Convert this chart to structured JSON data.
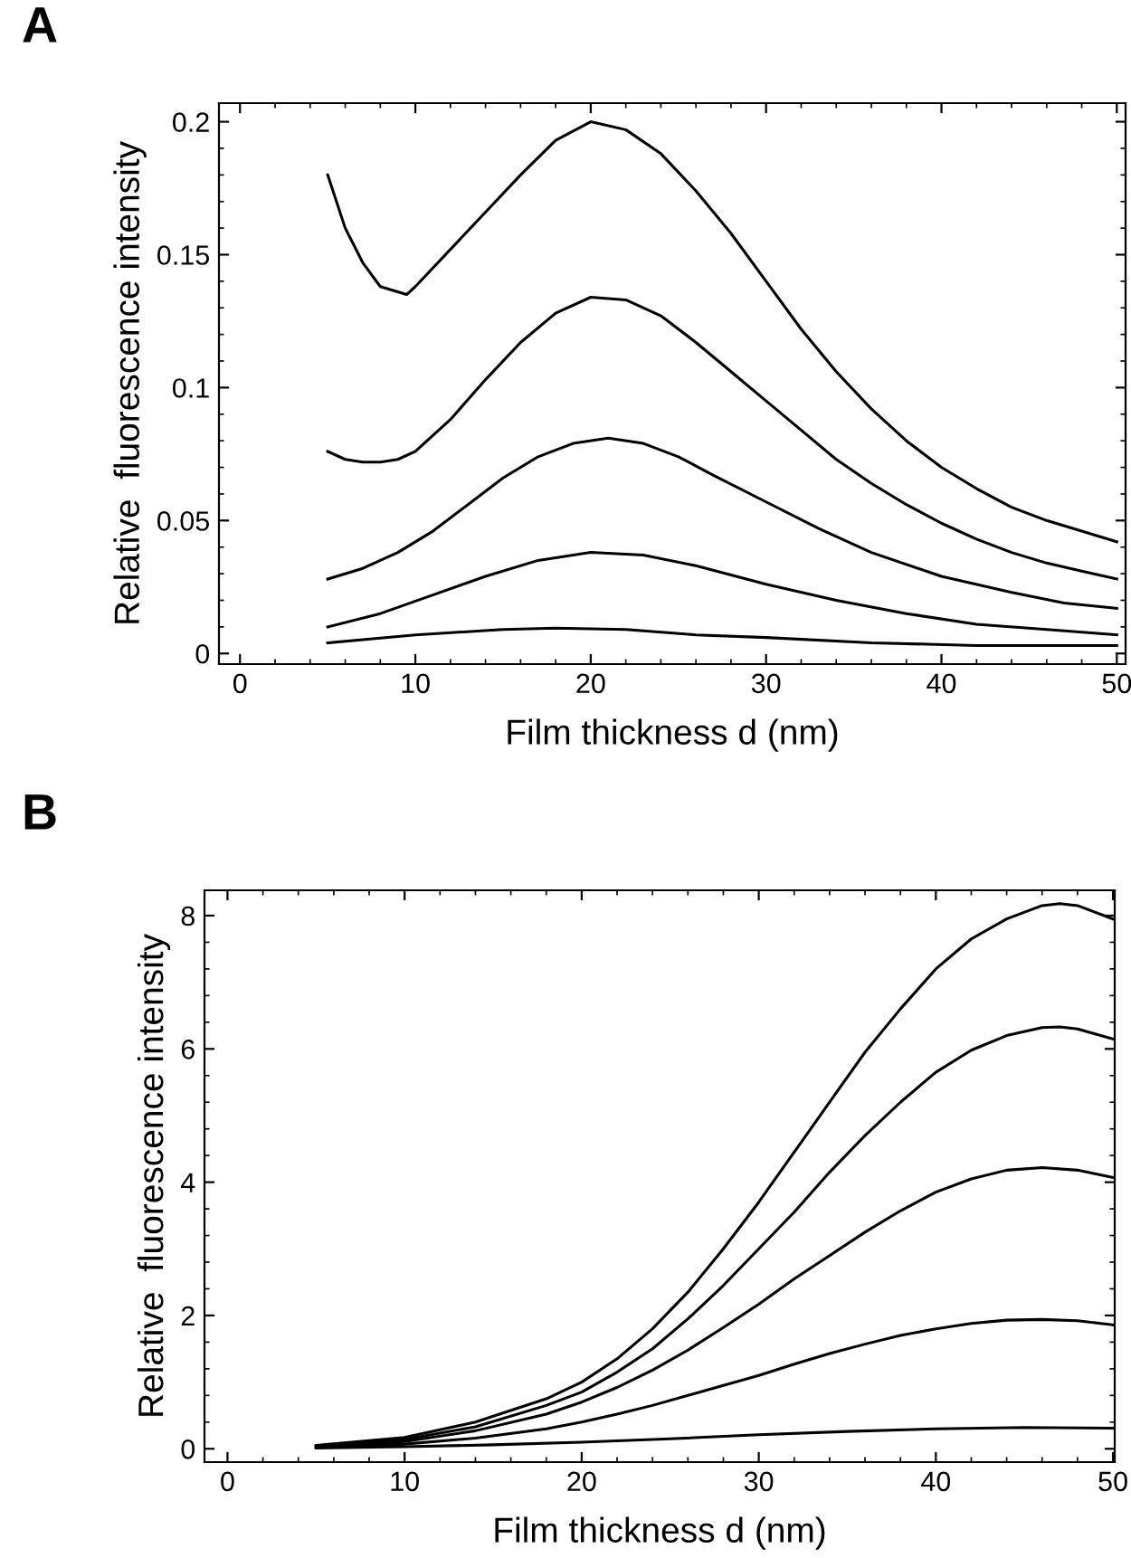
{
  "chart_data": [
    {
      "type": "line",
      "title": "A",
      "xlabel": "Film thickness d (nm)",
      "ylabel": "Relative  fluorescence intensity",
      "xlim": [
        -1.2,
        50.5
      ],
      "ylim": [
        -0.004,
        0.207
      ],
      "xticks": [
        0,
        10,
        20,
        30,
        40,
        50
      ],
      "yticks": [
        0,
        0.05,
        0.1,
        0.15,
        0.2
      ],
      "grid": false,
      "series": [
        {
          "color": "#000000",
          "x": [
            5,
            6,
            7,
            8,
            9.5,
            10,
            12,
            14,
            16,
            18,
            20,
            22,
            24,
            26,
            28,
            30,
            32,
            34,
            36,
            38,
            40,
            42,
            44,
            46,
            48,
            50
          ],
          "values": [
            0.18,
            0.16,
            0.147,
            0.138,
            0.135,
            0.138,
            0.152,
            0.166,
            0.18,
            0.193,
            0.2,
            0.197,
            0.188,
            0.174,
            0.158,
            0.14,
            0.122,
            0.106,
            0.092,
            0.08,
            0.07,
            0.062,
            0.055,
            0.05,
            0.046,
            0.042
          ]
        },
        {
          "color": "#000000",
          "x": [
            5,
            6,
            7,
            8,
            9,
            10,
            12,
            14,
            16,
            18,
            20,
            22,
            24,
            26,
            28,
            30,
            32,
            34,
            36,
            38,
            40,
            42,
            44,
            46,
            48,
            50
          ],
          "values": [
            0.076,
            0.073,
            0.072,
            0.072,
            0.073,
            0.076,
            0.088,
            0.103,
            0.117,
            0.128,
            0.134,
            0.133,
            0.127,
            0.117,
            0.106,
            0.095,
            0.084,
            0.073,
            0.064,
            0.056,
            0.049,
            0.043,
            0.038,
            0.034,
            0.031,
            0.028
          ]
        },
        {
          "color": "#000000",
          "x": [
            5,
            7,
            9,
            11,
            13,
            15,
            17,
            19,
            21,
            23,
            25,
            27,
            30,
            33,
            36,
            40,
            44,
            47,
            50
          ],
          "values": [
            0.028,
            0.032,
            0.038,
            0.046,
            0.056,
            0.066,
            0.074,
            0.079,
            0.081,
            0.079,
            0.074,
            0.067,
            0.057,
            0.047,
            0.038,
            0.029,
            0.023,
            0.019,
            0.017
          ]
        },
        {
          "color": "#000000",
          "x": [
            5,
            8,
            11,
            14,
            17,
            20,
            23,
            26,
            30,
            34,
            38,
            42,
            46,
            50
          ],
          "values": [
            0.01,
            0.015,
            0.022,
            0.029,
            0.035,
            0.038,
            0.037,
            0.033,
            0.026,
            0.02,
            0.015,
            0.011,
            0.009,
            0.007
          ]
        },
        {
          "color": "#000000",
          "x": [
            5,
            10,
            15,
            18,
            22,
            26,
            30,
            36,
            42,
            50
          ],
          "values": [
            0.004,
            0.007,
            0.009,
            0.0095,
            0.009,
            0.007,
            0.006,
            0.004,
            0.003,
            0.003
          ]
        }
      ]
    },
    {
      "type": "line",
      "title": "B",
      "xlabel": "Film thickness d (nm)",
      "ylabel": "Relative  fluorescence intensity",
      "xlim": [
        -1.3,
        50.1
      ],
      "ylim": [
        -0.2,
        8.38
      ],
      "xticks": [
        0,
        10,
        20,
        30,
        40,
        50
      ],
      "yticks": [
        0,
        2,
        4,
        6,
        8
      ],
      "grid": false,
      "series": [
        {
          "color": "#000000",
          "x": [
            5,
            10,
            14,
            18,
            20,
            22,
            24,
            26,
            28,
            30,
            32,
            34,
            36,
            38,
            40,
            42,
            44,
            46,
            47,
            48,
            50
          ],
          "values": [
            0.05,
            0.17,
            0.4,
            0.75,
            1.0,
            1.35,
            1.8,
            2.35,
            3.0,
            3.7,
            4.45,
            5.2,
            5.95,
            6.6,
            7.2,
            7.65,
            7.95,
            8.15,
            8.18,
            8.15,
            7.95
          ]
        },
        {
          "color": "#000000",
          "x": [
            5,
            10,
            14,
            18,
            20,
            22,
            24,
            26,
            28,
            30,
            32,
            34,
            36,
            38,
            40,
            42,
            44,
            46,
            47,
            48,
            50
          ],
          "values": [
            0.04,
            0.14,
            0.33,
            0.65,
            0.85,
            1.15,
            1.5,
            1.95,
            2.45,
            3.0,
            3.55,
            4.15,
            4.7,
            5.2,
            5.65,
            5.98,
            6.2,
            6.32,
            6.33,
            6.3,
            6.15
          ]
        },
        {
          "color": "#000000",
          "x": [
            5,
            10,
            14,
            18,
            20,
            22,
            24,
            26,
            28,
            30,
            32,
            34,
            36,
            38,
            40,
            42,
            44,
            46,
            48,
            50
          ],
          "values": [
            0.03,
            0.11,
            0.27,
            0.52,
            0.7,
            0.92,
            1.18,
            1.48,
            1.82,
            2.17,
            2.55,
            2.9,
            3.25,
            3.57,
            3.85,
            4.05,
            4.18,
            4.22,
            4.18,
            4.07
          ]
        },
        {
          "color": "#000000",
          "x": [
            5,
            10,
            14,
            18,
            20,
            22,
            24,
            26,
            28,
            30,
            32,
            34,
            36,
            38,
            40,
            42,
            44,
            46,
            48,
            50
          ],
          "values": [
            0.02,
            0.07,
            0.16,
            0.3,
            0.4,
            0.52,
            0.65,
            0.8,
            0.95,
            1.1,
            1.27,
            1.43,
            1.57,
            1.7,
            1.8,
            1.88,
            1.93,
            1.94,
            1.92,
            1.86
          ]
        },
        {
          "color": "#000000",
          "x": [
            5,
            10,
            15,
            20,
            25,
            30,
            35,
            40,
            45,
            50
          ],
          "values": [
            0.01,
            0.03,
            0.06,
            0.1,
            0.15,
            0.21,
            0.26,
            0.3,
            0.32,
            0.31
          ]
        }
      ]
    }
  ]
}
